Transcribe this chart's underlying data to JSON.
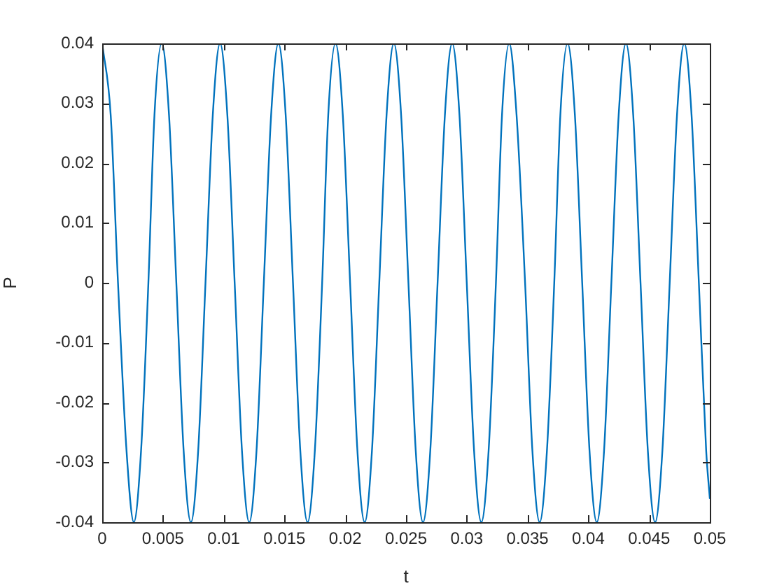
{
  "chart_data": {
    "type": "line",
    "xlabel": "t",
    "ylabel": "P",
    "x": [
      0,
      0.0007,
      0.0013,
      0.002,
      0.0026,
      0.0032,
      0.0038,
      0.0043,
      0.0049,
      0.0055,
      0.0061,
      0.0067,
      0.0073,
      0.0079,
      0.0085,
      0.0091,
      0.0097,
      0.0103,
      0.0109,
      0.0115,
      0.0121,
      0.0127,
      0.0133,
      0.0139,
      0.0145,
      0.0151,
      0.0157,
      0.0163,
      0.0169,
      0.0175,
      0.0181,
      0.0186,
      0.0192,
      0.0198,
      0.0204,
      0.021,
      0.0216,
      0.0222,
      0.0228,
      0.0234,
      0.024,
      0.0246,
      0.0252,
      0.0258,
      0.0264,
      0.027,
      0.0276,
      0.0282,
      0.0288,
      0.0294,
      0.03,
      0.0306,
      0.0312,
      0.0318,
      0.0324,
      0.0329,
      0.0335,
      0.0341,
      0.0348,
      0.0354,
      0.036,
      0.0366,
      0.0372,
      0.0377,
      0.0383,
      0.0389,
      0.0395,
      0.0401,
      0.0407,
      0.0413,
      0.0419,
      0.0425,
      0.0431,
      0.0437,
      0.0443,
      0.0449,
      0.0455,
      0.0461,
      0.0467,
      0.0473,
      0.0479,
      0.0485,
      0.0491,
      0.0497,
      0.05
    ],
    "series": [
      {
        "color": "#0072bd",
        "values": [
          0.04,
          0.028,
          0,
          -0.028,
          -0.04,
          -0.028,
          0,
          0.028,
          0.04,
          0.028,
          0,
          -0.028,
          -0.04,
          -0.028,
          0,
          0.028,
          0.04,
          0.028,
          0,
          -0.028,
          -0.04,
          -0.028,
          0,
          0.028,
          0.04,
          0.028,
          0,
          -0.028,
          -0.04,
          -0.028,
          0,
          0.028,
          0.04,
          0.028,
          0,
          -0.028,
          -0.04,
          -0.028,
          0,
          0.028,
          0.04,
          0.028,
          0,
          -0.028,
          -0.04,
          -0.028,
          0,
          0.028,
          0.04,
          0.028,
          0,
          -0.028,
          -0.04,
          -0.028,
          0,
          0.028,
          0.04,
          0.028,
          0,
          -0.028,
          -0.04,
          -0.028,
          0,
          0.028,
          0.04,
          0.028,
          0,
          -0.028,
          -0.04,
          -0.028,
          0,
          0.028,
          0.04,
          0.028,
          0,
          -0.028,
          -0.04,
          -0.028,
          0,
          0.028,
          0.04,
          0.028,
          0,
          -0.028,
          -0.036
        ]
      }
    ],
    "xlim": [
      0,
      0.05
    ],
    "ylim": [
      -0.04,
      0.04
    ],
    "xticks": [
      0,
      0.005,
      0.01,
      0.015,
      0.02,
      0.025,
      0.03,
      0.035,
      0.04,
      0.045,
      0.05
    ],
    "yticks": [
      -0.04,
      -0.03,
      -0.02,
      -0.01,
      0,
      0.01,
      0.02,
      0.03,
      0.04
    ],
    "marker": "none",
    "line_style": "solid"
  }
}
